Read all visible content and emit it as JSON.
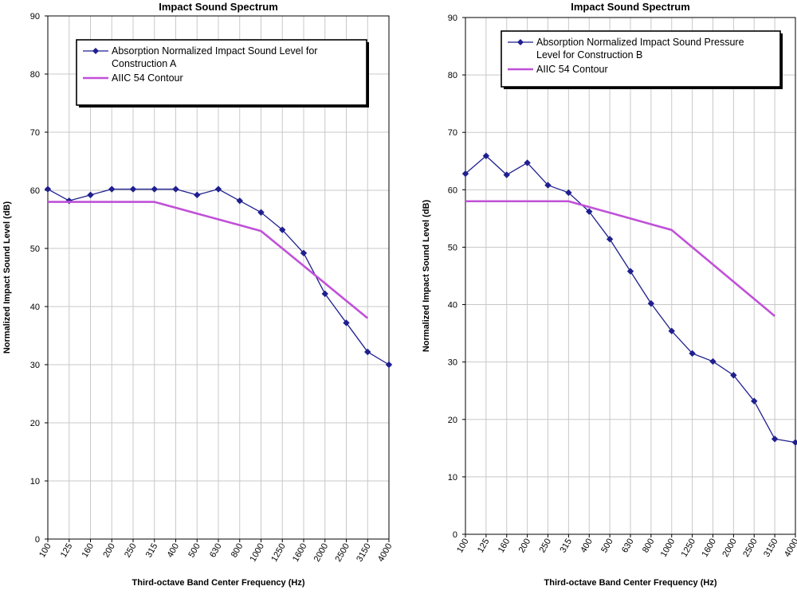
{
  "colors": {
    "series_measured": "#1f1f8f",
    "series_contour": "#c050d8",
    "grid": "#c8c8c8",
    "axis": "#000000"
  },
  "chart_data": [
    {
      "type": "line",
      "title": "Impact Sound Spectrum",
      "xlabel": "Third-octave Band Center Frequency (Hz)",
      "ylabel": "Normalized Impact Sound Level (dB)",
      "ylim": [
        0,
        90
      ],
      "yticks": [
        0,
        10,
        20,
        30,
        40,
        50,
        60,
        70,
        80,
        90
      ],
      "grid": true,
      "legend_position": "top-center",
      "categories": [
        "100",
        "125",
        "160",
        "200",
        "250",
        "315",
        "400",
        "500",
        "630",
        "800",
        "1000",
        "1250",
        "1600",
        "2000",
        "2500",
        "3150",
        "4000"
      ],
      "series": [
        {
          "name": "Absorption Normalized Impact Sound Level for Construction A",
          "legend_lines": [
            "Absorption Normalized Impact Sound Level for",
            "Construction A"
          ],
          "marker": "diamond",
          "values": [
            60.2,
            58.2,
            59.2,
            60.2,
            60.2,
            60.2,
            60.2,
            59.2,
            60.2,
            58.2,
            56.2,
            53.2,
            49.2,
            42.2,
            37.2,
            32.2,
            30.0
          ]
        },
        {
          "name": "AIIC 54 Contour",
          "legend_lines": [
            "AIIC 54 Contour"
          ],
          "marker": "none",
          "values": [
            58,
            58,
            58,
            58,
            58,
            58,
            57,
            56,
            55,
            54,
            53,
            50,
            47,
            44,
            41,
            38,
            null
          ]
        }
      ]
    },
    {
      "type": "line",
      "title": "Impact Sound Spectrum",
      "xlabel": "Third-octave Band Center Frequency (Hz)",
      "ylabel": "Normalized Impact Sound Level (dB)",
      "ylim": [
        0,
        90
      ],
      "yticks": [
        0,
        10,
        20,
        30,
        40,
        50,
        60,
        70,
        80,
        90
      ],
      "grid": true,
      "legend_position": "top-center",
      "categories": [
        "100",
        "125",
        "160",
        "200",
        "250",
        "315",
        "400",
        "500",
        "630",
        "800",
        "1000",
        "1250",
        "1600",
        "2000",
        "2500",
        "3150",
        "4000"
      ],
      "series": [
        {
          "name": "Absorption Normalized Impact Sound Pressure Level for Construction B",
          "legend_lines": [
            "Absorption Normalized Impact Sound Pressure",
            "Level for Construction B"
          ],
          "marker": "diamond",
          "values": [
            62.8,
            65.9,
            62.6,
            64.7,
            60.8,
            59.5,
            56.2,
            51.4,
            45.8,
            40.2,
            35.4,
            31.5,
            30.1,
            27.7,
            23.2,
            16.6,
            16.0
          ]
        },
        {
          "name": "AIIC 54 Contour",
          "legend_lines": [
            "AIIC 54 Contour"
          ],
          "marker": "none",
          "values": [
            58,
            58,
            58,
            58,
            58,
            58,
            57,
            56,
            55,
            54,
            53,
            50,
            47,
            44,
            41,
            38,
            null
          ]
        }
      ]
    }
  ]
}
